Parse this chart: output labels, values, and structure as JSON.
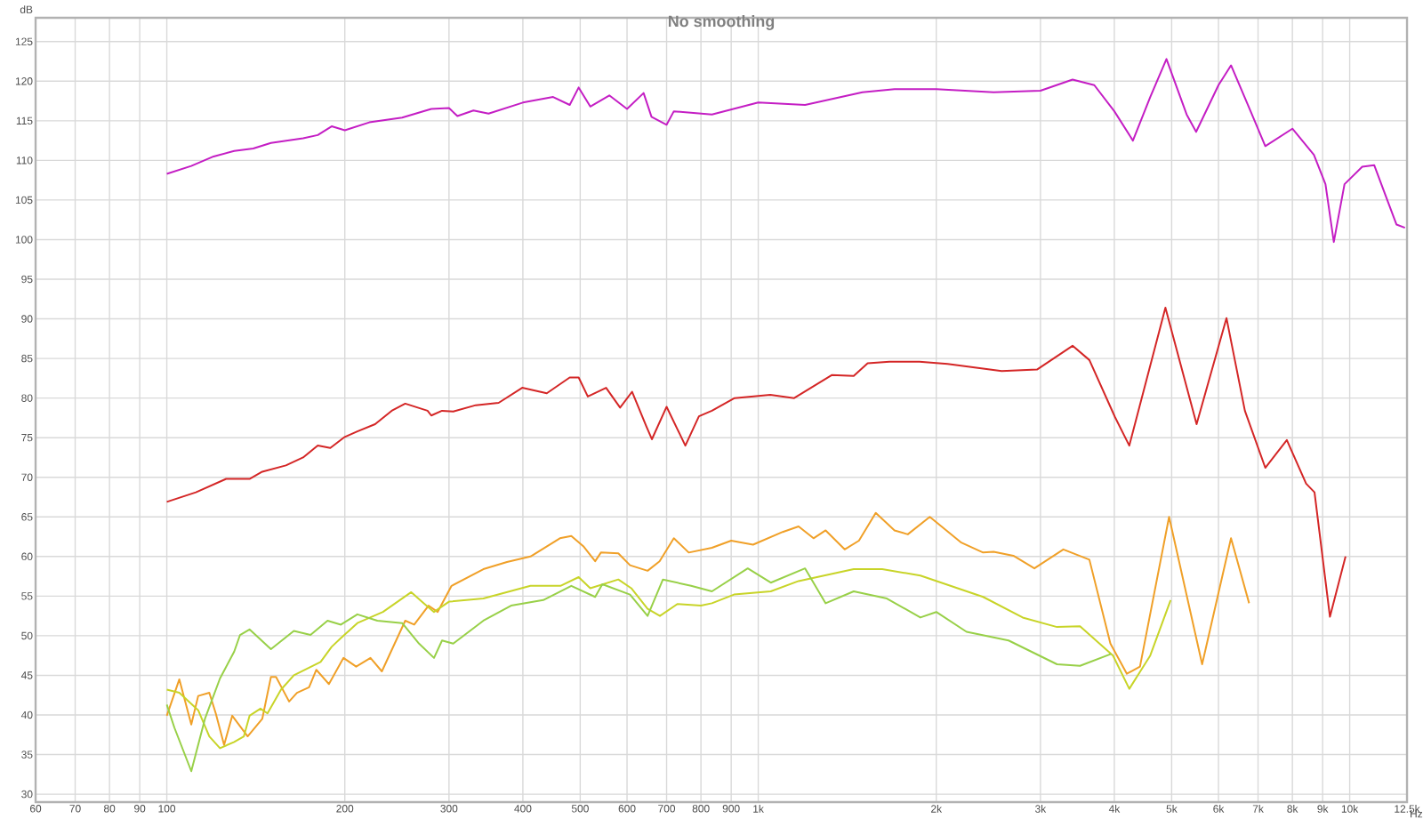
{
  "chart_data": {
    "type": "line",
    "title": "No smoothing",
    "xlabel": "Hz",
    "ylabel": "dB",
    "log": "x",
    "grid": true,
    "xlim": [
      60,
      12500
    ],
    "ylim": [
      29,
      128
    ],
    "xticks": [
      60,
      70,
      80,
      90,
      100,
      200,
      300,
      400,
      500,
      600,
      700,
      800,
      900,
      {
        "value": 1000,
        "label": "1k"
      },
      {
        "value": 2000,
        "label": "2k"
      },
      {
        "value": 3000,
        "label": "3k"
      },
      {
        "value": 4000,
        "label": "4k"
      },
      {
        "value": 5000,
        "label": "5k"
      },
      {
        "value": 6000,
        "label": "6k"
      },
      {
        "value": 7000,
        "label": "7k"
      },
      {
        "value": 8000,
        "label": "8k"
      },
      {
        "value": 9000,
        "label": "9k"
      },
      {
        "value": 10000,
        "label": "10k"
      },
      {
        "value": 12500,
        "label": "12.5k"
      }
    ],
    "yticks": [
      30,
      35,
      40,
      45,
      50,
      55,
      60,
      65,
      70,
      75,
      80,
      85,
      90,
      95,
      100,
      105,
      110,
      115,
      120,
      125
    ],
    "series": [
      {
        "color": "#c41ec4",
        "x": [
          100,
          110,
          120,
          130,
          140,
          150,
          170,
          180,
          190,
          200,
          220,
          250,
          280,
          300,
          310,
          330,
          350,
          400,
          450,
          480,
          497,
          520,
          560,
          600,
          640,
          660,
          700,
          720,
          835,
          1000,
          1200,
          1500,
          1700,
          2000,
          2500,
          3000,
          3400,
          3700,
          4000,
          4300,
          4600,
          4900,
          5300,
          5500,
          6000,
          6300,
          6800,
          7200,
          8000,
          8700,
          9100,
          9400,
          9800,
          10500,
          11000,
          11600,
          12000,
          12400
        ],
        "values": [
          108.3,
          109.3,
          110.5,
          111.2,
          111.5,
          112.2,
          112.8,
          113.2,
          114.3,
          113.8,
          114.8,
          115.4,
          116.5,
          116.6,
          115.6,
          116.3,
          115.9,
          117.3,
          118.0,
          117.0,
          119.2,
          116.8,
          118.2,
          116.5,
          118.5,
          115.5,
          114.5,
          116.2,
          115.8,
          117.3,
          117.0,
          118.6,
          119.0,
          119.0,
          118.6,
          118.8,
          120.2,
          119.5,
          116.2,
          112.5,
          118.0,
          122.8,
          115.8,
          113.6,
          119.5,
          122.0,
          116.2,
          111.8,
          114.0,
          110.7,
          107.0,
          99.7,
          107.0,
          109.2,
          109.4,
          104.8,
          101.9,
          101.5
        ]
      },
      {
        "color": "#d42626",
        "x": [
          100,
          112,
          126,
          138,
          145,
          159,
          170,
          180,
          189,
          200,
          210,
          225,
          240,
          253,
          276,
          280,
          292,
          305,
          333,
          364,
          399,
          439,
          480,
          497,
          515,
          553,
          584,
          612,
          647,
          661,
          700,
          753,
          794,
          835,
          912,
          1048,
          1150,
          1331,
          1450,
          1531,
          1667,
          1873,
          2090,
          2580,
          2960,
          3400,
          3630,
          4010,
          4240,
          4880,
          5510,
          6190,
          6650,
          7200,
          7830,
          8440,
          8720,
          9260,
          9840
        ],
        "values": [
          66.9,
          68.1,
          69.8,
          69.8,
          70.7,
          71.5,
          72.5,
          74.0,
          73.7,
          75.1,
          75.8,
          76.7,
          78.4,
          79.3,
          78.4,
          77.8,
          78.4,
          78.3,
          79.1,
          79.4,
          81.3,
          80.6,
          82.6,
          82.6,
          80.2,
          81.3,
          78.8,
          80.8,
          76.4,
          74.8,
          78.9,
          74.0,
          77.7,
          78.4,
          80.0,
          80.4,
          80.0,
          82.9,
          82.8,
          84.4,
          84.6,
          84.6,
          84.3,
          83.4,
          83.6,
          86.6,
          84.8,
          77.6,
          74.0,
          91.4,
          76.7,
          90.1,
          78.4,
          71.2,
          74.7,
          69.2,
          68.1,
          52.4,
          60.0
        ]
      },
      {
        "color": "#f0a028",
        "x": [
          100,
          105,
          110,
          113,
          118,
          121,
          125,
          129,
          137,
          145,
          150,
          153,
          161,
          166,
          174,
          179,
          188,
          199,
          209,
          221,
          231,
          253,
          262,
          277,
          287,
          303,
          343,
          376,
          412,
          462,
          483,
          506,
          530,
          542,
          580,
          607,
          650,
          681,
          720,
          763,
          835,
          900,
          980,
          1100,
          1170,
          1240,
          1300,
          1400,
          1480,
          1580,
          1700,
          1790,
          1950,
          2200,
          2400,
          2500,
          2700,
          2930,
          3280,
          3630,
          3940,
          4200,
          4420,
          4950,
          5630,
          6300,
          6760
        ],
        "values": [
          39.9,
          44.5,
          38.8,
          42.4,
          42.8,
          40.2,
          36.2,
          39.9,
          37.3,
          39.5,
          44.8,
          44.8,
          41.7,
          42.8,
          43.5,
          45.7,
          43.9,
          47.2,
          46.1,
          47.2,
          45.5,
          51.9,
          51.4,
          53.8,
          53.0,
          56.3,
          58.4,
          59.3,
          60.0,
          62.3,
          62.6,
          61.3,
          59.4,
          60.5,
          60.4,
          58.9,
          58.2,
          59.4,
          62.3,
          60.5,
          61.1,
          62.0,
          61.5,
          63.1,
          63.8,
          62.3,
          63.3,
          60.9,
          62.0,
          65.5,
          63.3,
          62.8,
          65.0,
          61.8,
          60.5,
          60.6,
          60.1,
          58.5,
          60.9,
          59.6,
          49.0,
          45.2,
          46.1,
          65.0,
          46.4,
          62.3,
          54.1
        ]
      },
      {
        "color": "#c8d428",
        "x": [
          100,
          105,
          113,
          118,
          123,
          130,
          135,
          138,
          144,
          148,
          156,
          164,
          182,
          190,
          197,
          210,
          232,
          259,
          272,
          283,
          300,
          343,
          412,
          463,
          497,
          520,
          580,
          610,
          650,
          682,
          730,
          800,
          835,
          910,
          1050,
          1170,
          1450,
          1620,
          1880,
          2400,
          2800,
          3200,
          3500,
          3980,
          4240,
          4600,
          4980
        ],
        "values": [
          43.2,
          42.8,
          40.6,
          37.3,
          35.8,
          36.6,
          37.3,
          39.9,
          40.8,
          40.2,
          43.2,
          45.0,
          46.7,
          48.6,
          49.7,
          51.6,
          53.0,
          55.5,
          54.1,
          53.0,
          54.3,
          54.7,
          56.3,
          56.3,
          57.4,
          56.0,
          57.1,
          56.0,
          53.4,
          52.5,
          54.0,
          53.8,
          54.1,
          55.2,
          55.6,
          56.9,
          58.4,
          58.4,
          57.6,
          54.9,
          52.3,
          51.1,
          51.2,
          47.5,
          43.3,
          47.5,
          54.5
        ]
      },
      {
        "color": "#98d048",
        "x": [
          100,
          103,
          110,
          116,
          123,
          130,
          133,
          138,
          150,
          164,
          175,
          187,
          197,
          210,
          227,
          250,
          267,
          283,
          292,
          305,
          343,
          382,
          433,
          483,
          530,
          545,
          607,
          650,
          690,
          770,
          835,
          960,
          1050,
          1200,
          1300,
          1450,
          1650,
          1880,
          2000,
          2250,
          2650,
          3200,
          3500,
          3950
        ],
        "values": [
          41.3,
          38.4,
          32.9,
          39.5,
          44.6,
          48.0,
          50.1,
          50.8,
          48.3,
          50.6,
          50.1,
          51.9,
          51.4,
          52.7,
          51.9,
          51.6,
          49.0,
          47.2,
          49.4,
          49.0,
          51.9,
          53.8,
          54.5,
          56.3,
          54.9,
          56.5,
          55.2,
          52.5,
          57.1,
          56.3,
          55.6,
          58.5,
          56.7,
          58.5,
          54.1,
          55.6,
          54.7,
          52.3,
          53.0,
          50.5,
          49.4,
          46.4,
          46.2,
          47.7
        ]
      }
    ]
  }
}
